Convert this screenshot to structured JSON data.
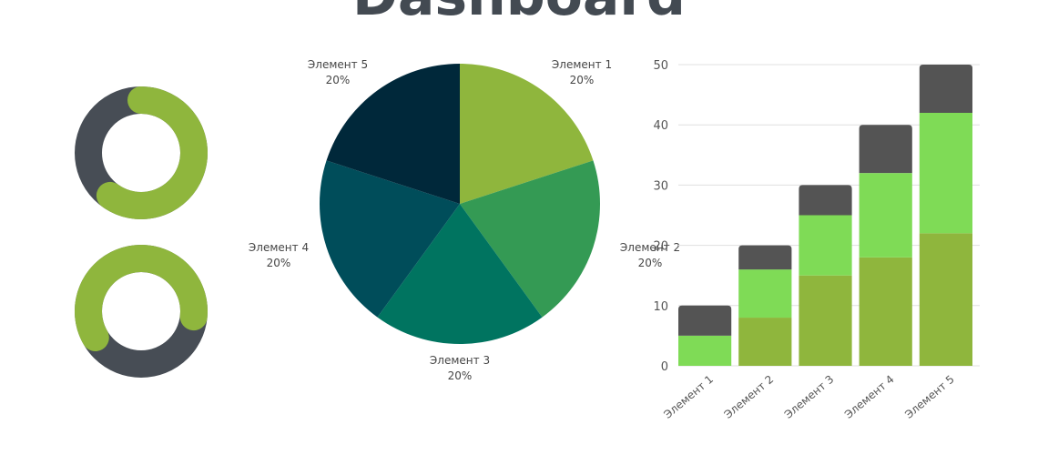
{
  "title": "Dashboard",
  "colors": {
    "donut_track": "#474d55",
    "donut_value": "#8fb63d",
    "stack": [
      "#8fb63d",
      "#7fdb56",
      "#545454"
    ],
    "grid": "#e0e0e0"
  },
  "chart_data": [
    {
      "type": "donut",
      "value_percent": 60,
      "start_deg": 0
    },
    {
      "type": "donut",
      "value_percent": 60,
      "start_deg": 240
    },
    {
      "type": "pie",
      "slices": [
        {
          "label": "Элемент 1",
          "value": 20,
          "value_label": "20%",
          "color": "#8fb63d"
        },
        {
          "label": "Элемент 2",
          "value": 20,
          "value_label": "20%",
          "color": "#349a54"
        },
        {
          "label": "Элемент 3",
          "value": 20,
          "value_label": "20%",
          "color": "#007460"
        },
        {
          "label": "Элемент 4",
          "value": 20,
          "value_label": "20%",
          "color": "#004d5a"
        },
        {
          "label": "Элемент 5",
          "value": 20,
          "value_label": "20%",
          "color": "#00283a"
        }
      ]
    },
    {
      "type": "bar",
      "stacked": true,
      "categories": [
        "Элемент 1",
        "Элемент 2",
        "Элемент 3",
        "Элемент 4",
        "Элемент 5"
      ],
      "series": [
        {
          "values": [
            0,
            8,
            15,
            18,
            22
          ]
        },
        {
          "values": [
            5,
            8,
            10,
            14,
            20
          ]
        },
        {
          "values": [
            5,
            4,
            5,
            8,
            8
          ]
        }
      ],
      "ylim": [
        0,
        50
      ],
      "yticks": [
        0,
        10,
        20,
        30,
        40,
        50
      ],
      "grid": true
    }
  ]
}
